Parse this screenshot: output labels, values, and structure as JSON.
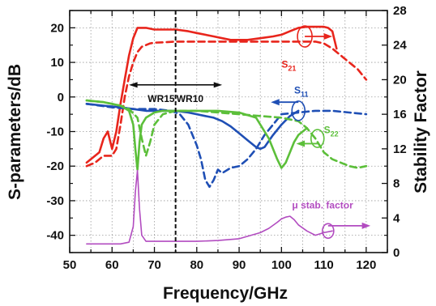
{
  "chart_data": {
    "type": "line",
    "xlabel": "Frequency/GHz",
    "ylabel_left": "S-parameters/dB",
    "ylabel_right": "Stability Factor",
    "xlim": [
      50,
      125
    ],
    "ylim_left": [
      -45,
      25
    ],
    "ylim_right": [
      0,
      28
    ],
    "x_ticks": [
      50,
      55,
      60,
      65,
      70,
      75,
      80,
      85,
      90,
      95,
      100,
      105,
      110,
      115,
      120,
      125
    ],
    "x_tick_labels": [
      "50",
      "60",
      "70",
      "80",
      "90",
      "100",
      "110",
      "120"
    ],
    "y_ticks_left": [
      -40,
      -30,
      -20,
      -10,
      0,
      10,
      20
    ],
    "y_tick_labels_left": [
      "-40",
      "-30",
      "-20",
      "-10",
      "0",
      "10",
      "20"
    ],
    "y_ticks_right": [
      0,
      4,
      8,
      12,
      16,
      20,
      24,
      28
    ],
    "y_tick_labels_right": [
      "0",
      "4",
      "8",
      "12",
      "16",
      "20",
      "24",
      "28"
    ],
    "grid": "dotted",
    "marker_line_x": 75,
    "band_labels": [
      "WR15",
      "WR10"
    ],
    "annotations": {
      "s21": {
        "main": "S",
        "sub": "21",
        "color": "#e8251c"
      },
      "s11": {
        "main": "S",
        "sub": "11",
        "color": "#1f4fb5"
      },
      "s22": {
        "main": "S",
        "sub": "22",
        "color": "#5cbf3a"
      },
      "mu": {
        "text": "μ stab. factor",
        "color": "#b24cc0"
      }
    },
    "series": [
      {
        "id": "s21-solid",
        "color": "#e8251c",
        "style": "solid",
        "axis": "left",
        "x": [
          54,
          56,
          57,
          58,
          59,
          60,
          61,
          62,
          63,
          64,
          65,
          66,
          67,
          68,
          70,
          72,
          75,
          78,
          80,
          82,
          84,
          86,
          88,
          90,
          92,
          95,
          98,
          100,
          102,
          104,
          106,
          108,
          110,
          111,
          112,
          113
        ],
        "y": [
          -19,
          -17,
          -16,
          -12,
          -10,
          -15,
          -10,
          -2,
          5,
          12,
          17,
          20,
          20,
          20,
          19.5,
          19.5,
          19.5,
          19,
          18.5,
          18,
          17.5,
          17,
          16.5,
          16.5,
          16.5,
          17,
          17.5,
          18,
          19,
          20,
          20.3,
          20.3,
          20.3,
          20,
          19,
          14
        ]
      },
      {
        "id": "s21-dashed",
        "color": "#e8251c",
        "style": "dashed",
        "axis": "left",
        "x": [
          54,
          56,
          58,
          60,
          61,
          62,
          63,
          64,
          65,
          66,
          67,
          68,
          69,
          70,
          72,
          75,
          80,
          85,
          90,
          95,
          100,
          105,
          108,
          110,
          112,
          114,
          116,
          118,
          120
        ],
        "y": [
          -20,
          -19,
          -17,
          -17,
          -15,
          -8,
          0,
          6,
          10,
          13,
          14.5,
          15,
          15.5,
          15.7,
          15.8,
          16,
          16,
          16,
          16,
          16,
          16,
          16,
          16,
          15.5,
          14,
          12,
          10,
          8,
          5
        ]
      },
      {
        "id": "s11-solid",
        "color": "#1f4fb5",
        "style": "solid",
        "axis": "left",
        "x": [
          54,
          58,
          62,
          65,
          68,
          70,
          72,
          75,
          78,
          80,
          82,
          84,
          86,
          88,
          90,
          92,
          94,
          95,
          96,
          98,
          100,
          102,
          104
        ],
        "y": [
          -2,
          -2.5,
          -3,
          -3.5,
          -4,
          -4,
          -4,
          -4,
          -4.5,
          -5,
          -5.5,
          -6,
          -7,
          -8.5,
          -10.5,
          -12.5,
          -14.5,
          -15,
          -14.5,
          -11,
          -8,
          -5.5,
          -4
        ]
      },
      {
        "id": "s11-dashed",
        "color": "#1f4fb5",
        "style": "dashed",
        "axis": "left",
        "x": [
          54,
          60,
          65,
          70,
          74,
          76,
          78,
          80,
          81,
          82,
          83,
          84,
          85,
          86,
          88,
          90,
          92,
          94,
          96,
          98,
          100,
          104,
          108,
          112,
          116,
          120
        ],
        "y": [
          -2,
          -3,
          -3.5,
          -3.5,
          -4,
          -5,
          -8,
          -14,
          -18,
          -24,
          -26,
          -24,
          -21,
          -22,
          -20.5,
          -20,
          -18,
          -15,
          -11,
          -8,
          -5,
          -4.5,
          -4,
          -4,
          -4.5,
          -5
        ]
      },
      {
        "id": "s22-solid",
        "color": "#5cbf3a",
        "style": "solid",
        "axis": "left",
        "x": [
          54,
          58,
          62,
          64,
          65,
          65.5,
          66,
          66.5,
          67,
          68,
          70,
          72,
          75,
          80,
          85,
          90,
          94,
          97,
          99,
          100,
          101,
          102,
          103,
          104,
          105,
          106
        ],
        "y": [
          -1,
          -1.5,
          -2.5,
          -4,
          -8,
          -15,
          -21,
          -13,
          -8,
          -6,
          -4.5,
          -4,
          -4,
          -4,
          -4,
          -4.5,
          -6,
          -12,
          -18,
          -20.5,
          -19,
          -16,
          -13,
          -11,
          -10,
          -9
        ]
      },
      {
        "id": "s22-dashed",
        "color": "#5cbf3a",
        "style": "dashed",
        "axis": "left",
        "x": [
          54,
          58,
          62,
          64,
          66,
          67,
          68,
          69,
          70,
          72,
          75,
          80,
          85,
          90,
          95,
          100,
          104,
          106,
          108,
          110,
          112,
          114,
          116,
          118,
          120
        ],
        "y": [
          -1,
          -1.5,
          -2.5,
          -3.5,
          -6,
          -12,
          -17,
          -13,
          -8,
          -5,
          -4,
          -4,
          -4.5,
          -5,
          -5.5,
          -6,
          -7,
          -9,
          -12,
          -16,
          -18,
          -19,
          -20,
          -20.5,
          -20
        ]
      },
      {
        "id": "mu",
        "color": "#b24cc0",
        "style": "solid",
        "axis": "right",
        "x": [
          54,
          58,
          62,
          64,
          65,
          65.5,
          66,
          66.5,
          67,
          68,
          70,
          75,
          80,
          85,
          90,
          95,
          97,
          99,
          100,
          101,
          102,
          103,
          104,
          106,
          108,
          110,
          112
        ],
        "y": [
          1,
          1,
          1,
          1.2,
          3,
          7,
          9.5,
          5,
          2,
          1.3,
          1.3,
          1.3,
          1.3,
          1.4,
          1.6,
          2.3,
          2.8,
          3.5,
          3.9,
          4.1,
          4.2,
          3.8,
          3.2,
          2.5,
          2,
          2.3,
          2.5
        ]
      }
    ]
  }
}
